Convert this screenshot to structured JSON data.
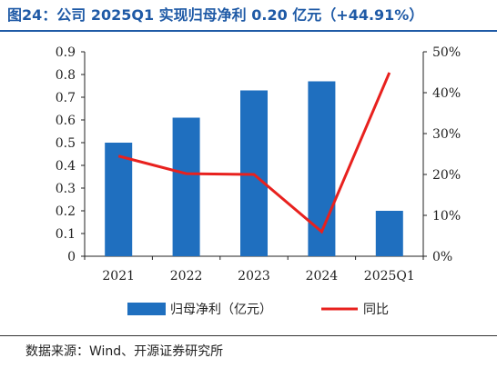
{
  "title": "图24：公司 2025Q1 实现归母净利 0.20 亿元（+44.91%）",
  "source": "数据来源：Wind、开源证券研究所",
  "colors": {
    "bar": "#1f6fbf",
    "line": "#e8211e",
    "title": "#1f5aa6"
  },
  "chart_data": {
    "type": "bar",
    "categories": [
      "2021",
      "2022",
      "2023",
      "2024",
      "2025Q1"
    ],
    "series": [
      {
        "name": "归母净利（亿元）",
        "type": "bar",
        "axis": "left",
        "values": [
          0.5,
          0.61,
          0.73,
          0.77,
          0.2
        ]
      },
      {
        "name": "同比",
        "type": "line",
        "axis": "right",
        "values": [
          24.5,
          20.2,
          20.0,
          6.0,
          44.91
        ]
      }
    ],
    "y_left": {
      "min": 0,
      "max": 0.9,
      "ticks": [
        "0",
        "0.1",
        "0.2",
        "0.3",
        "0.4",
        "0.5",
        "0.6",
        "0.7",
        "0.8",
        "0.9"
      ]
    },
    "y_right": {
      "min": 0,
      "max": 50,
      "ticks": [
        "0%",
        "10%",
        "20%",
        "30%",
        "40%",
        "50%"
      ]
    },
    "grid": false,
    "legend_position": "bottom"
  }
}
